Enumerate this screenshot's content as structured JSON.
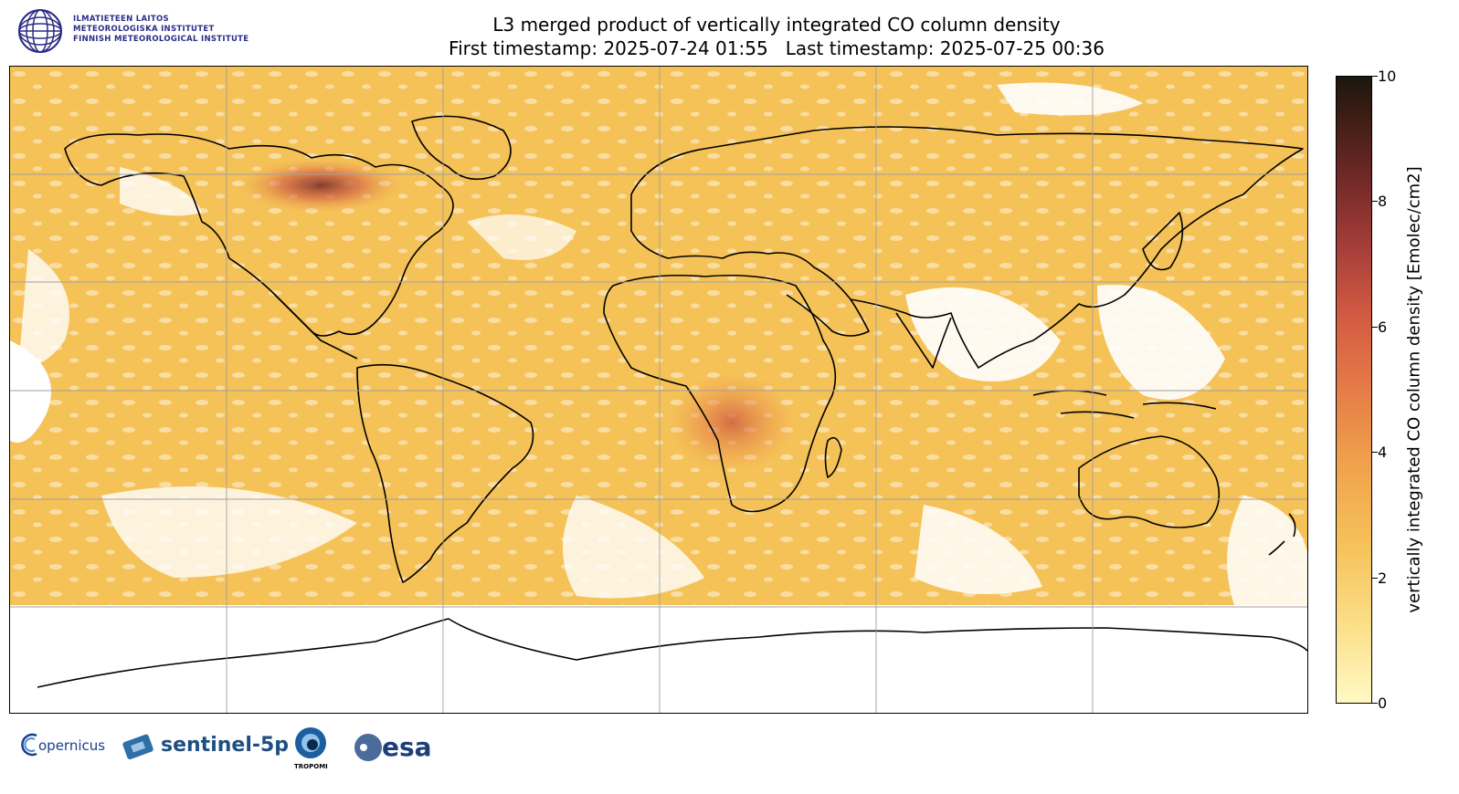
{
  "header": {
    "logo_lines": [
      "ILMATIETEEN LAITOS",
      "METEOROLOGISKA INSTITUTET",
      "FINNISH METEOROLOGICAL INSTITUTE"
    ],
    "title_line1": "L3 merged product of vertically integrated CO column density",
    "title_line2": "First timestamp: 2025-07-24 01:55   Last timestamp: 2025-07-25 00:36"
  },
  "colorbar": {
    "label": "vertically integrated CO column density [Emolec/cm2]",
    "ticks": [
      "0",
      "2",
      "4",
      "6",
      "8",
      "10"
    ],
    "min": 0,
    "max": 10,
    "colormap": "yellow-orange-red-brown"
  },
  "map": {
    "projection": "PlateCarree",
    "gridlines": true,
    "background_value_color": "#f7cc5e",
    "hotspots": [
      {
        "region": "Northern Canada",
        "level": "high"
      },
      {
        "region": "Central Africa",
        "level": "elevated"
      }
    ]
  },
  "footer_logos": {
    "copernicus": "opernicus",
    "sentinel": "sentinel-5p",
    "tropomi": "TROPOMI",
    "esa": "esa"
  }
}
